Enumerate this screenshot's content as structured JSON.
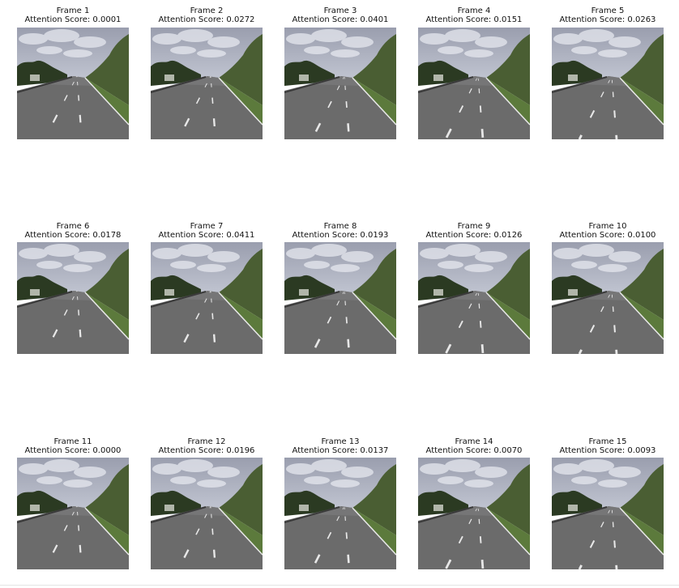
{
  "frames": [
    {
      "title": "Frame 1",
      "score": "Attention Score: 0.0001",
      "dash": 0.05
    },
    {
      "title": "Frame 2",
      "score": "Attention Score: 0.0272",
      "dash": 0.2
    },
    {
      "title": "Frame 3",
      "score": "Attention Score: 0.0401",
      "dash": 0.4
    },
    {
      "title": "Frame 4",
      "score": "Attention Score: 0.0151",
      "dash": 0.62
    },
    {
      "title": "Frame 5",
      "score": "Attention Score: 0.0263",
      "dash": 0.85
    },
    {
      "title": "Frame 6",
      "score": "Attention Score: 0.0178",
      "dash": 0.05
    },
    {
      "title": "Frame 7",
      "score": "Attention Score: 0.0411",
      "dash": 0.25
    },
    {
      "title": "Frame 8",
      "score": "Attention Score: 0.0193",
      "dash": 0.45
    },
    {
      "title": "Frame 9",
      "score": "Attention Score: 0.0126",
      "dash": 0.65
    },
    {
      "title": "Frame 10",
      "score": "Attention Score: 0.0100",
      "dash": 0.85
    },
    {
      "title": "Frame 11",
      "score": "Attention Score: 0.0000",
      "dash": 0.05
    },
    {
      "title": "Frame 12",
      "score": "Attention Score: 0.0196",
      "dash": 0.25
    },
    {
      "title": "Frame 13",
      "score": "Attention Score: 0.0137",
      "dash": 0.45
    },
    {
      "title": "Frame 14",
      "score": "Attention Score: 0.0070",
      "dash": 0.65
    },
    {
      "title": "Frame 15",
      "score": "Attention Score: 0.0093",
      "dash": 0.85
    }
  ],
  "colors": {
    "sky_top": "#9a9eae",
    "sky_bottom": "#c4c8d4",
    "cloud": "#e6e8ef",
    "trees_dark": "#2b3a22",
    "trees_light": "#4a5e33",
    "grass": "#5c7a3c",
    "road": "#6b6b6b",
    "road_far": "#7d7d7f",
    "lane_mark": "#e8e8e8",
    "barrier": "#3a3a3a"
  }
}
